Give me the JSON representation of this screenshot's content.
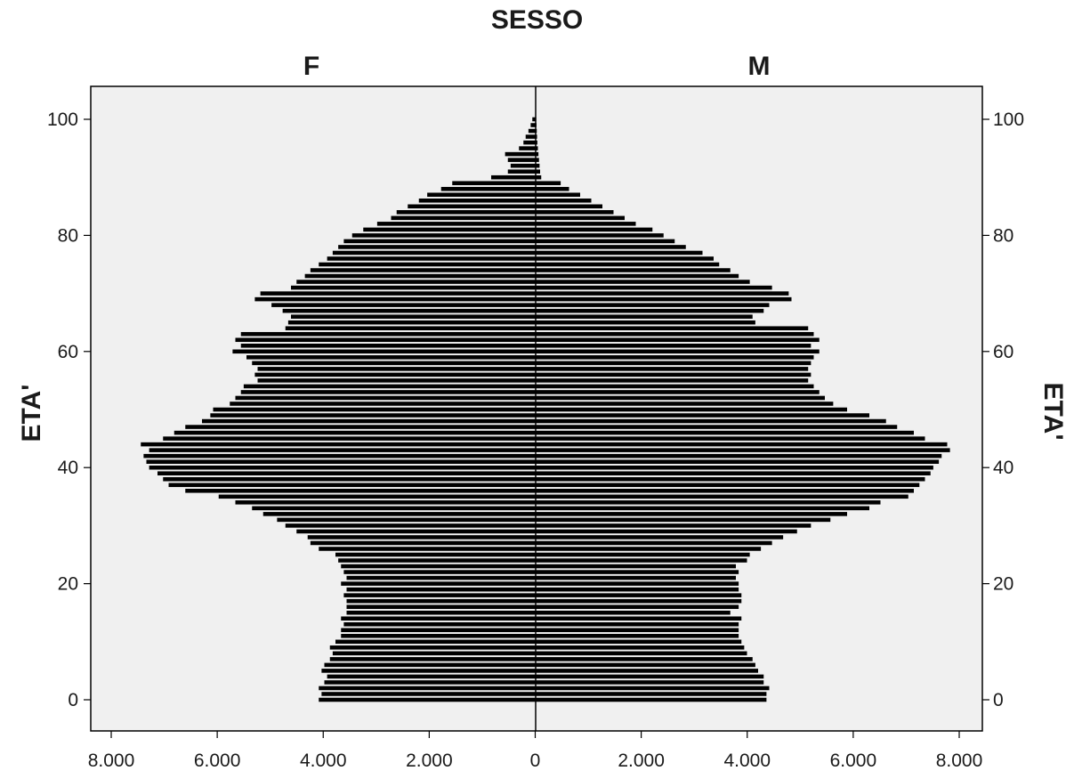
{
  "chart_data": {
    "type": "bar",
    "orientation": "horizontal",
    "subtype": "population-pyramid",
    "title": "SESSO",
    "panels": [
      "F",
      "M"
    ],
    "ylabel": "ETA'",
    "xlabel": "",
    "xlim": [
      0,
      8000
    ],
    "ylim": [
      -5,
      105
    ],
    "x_ticks": [
      "8.000",
      "6.000",
      "4.000",
      "2.000",
      "0",
      "2.000",
      "4.000",
      "6.000",
      "8.000"
    ],
    "y_ticks": [
      0,
      20,
      40,
      60,
      80,
      100
    ],
    "grid": false,
    "plot_background": "#f0f0f0",
    "bar_color": "#000000",
    "ages": [
      0,
      1,
      2,
      3,
      4,
      5,
      6,
      7,
      8,
      9,
      10,
      11,
      12,
      13,
      14,
      15,
      16,
      17,
      18,
      19,
      20,
      21,
      22,
      23,
      24,
      25,
      26,
      27,
      28,
      29,
      30,
      31,
      32,
      33,
      34,
      35,
      36,
      37,
      38,
      39,
      40,
      41,
      42,
      43,
      44,
      45,
      46,
      47,
      48,
      49,
      50,
      51,
      52,
      53,
      54,
      55,
      56,
      57,
      58,
      59,
      60,
      61,
      62,
      63,
      64,
      65,
      66,
      67,
      68,
      69,
      70,
      71,
      72,
      73,
      74,
      75,
      76,
      77,
      78,
      79,
      80,
      81,
      82,
      83,
      84,
      85,
      86,
      87,
      88,
      89,
      90,
      91,
      92,
      93,
      94,
      95,
      96,
      97,
      98,
      99,
      100
    ],
    "series": [
      {
        "name": "F",
        "values": [
          3900,
          3850,
          3900,
          3800,
          3750,
          3850,
          3800,
          3700,
          3650,
          3700,
          3600,
          3500,
          3500,
          3450,
          3500,
          3400,
          3400,
          3400,
          3450,
          3400,
          3500,
          3400,
          3450,
          3500,
          3550,
          3600,
          3900,
          4050,
          4100,
          4300,
          4500,
          4650,
          4900,
          5100,
          5400,
          5700,
          6300,
          6600,
          6700,
          6800,
          6950,
          7000,
          7050,
          6950,
          7100,
          6700,
          6500,
          6300,
          6000,
          5850,
          5800,
          5500,
          5400,
          5300,
          5250,
          5000,
          5050,
          5000,
          5100,
          5200,
          5450,
          5300,
          5400,
          5300,
          4500,
          4450,
          4400,
          4550,
          4750,
          5050,
          4950,
          4400,
          4300,
          4150,
          4050,
          3900,
          3750,
          3650,
          3550,
          3450,
          3300,
          3100,
          2850,
          2600,
          2500,
          2300,
          2100,
          1950,
          1700,
          1500,
          800,
          500,
          450,
          500,
          550,
          300,
          220,
          180,
          130,
          90,
          60
        ]
      },
      {
        "name": "M",
        "values": [
          4150,
          4150,
          4200,
          4100,
          4100,
          4000,
          3950,
          3900,
          3800,
          3750,
          3700,
          3650,
          3650,
          3650,
          3700,
          3500,
          3650,
          3700,
          3700,
          3650,
          3650,
          3600,
          3650,
          3600,
          3800,
          3850,
          4050,
          4250,
          4450,
          4700,
          4950,
          5300,
          5600,
          6000,
          6200,
          6700,
          6800,
          6900,
          7000,
          7100,
          7150,
          7250,
          7300,
          7450,
          7400,
          7000,
          6800,
          6500,
          6300,
          6000,
          5600,
          5350,
          5200,
          5100,
          5000,
          4900,
          4950,
          4900,
          4950,
          5000,
          5100,
          4950,
          5100,
          5000,
          4900,
          3950,
          3900,
          4100,
          4200,
          4600,
          4550,
          4250,
          3850,
          3650,
          3500,
          3300,
          3200,
          3000,
          2700,
          2500,
          2300,
          2100,
          1800,
          1600,
          1400,
          1200,
          1000,
          800,
          600,
          450,
          100,
          80,
          70,
          60,
          50,
          40,
          30,
          25,
          20,
          15,
          10
        ]
      }
    ]
  }
}
